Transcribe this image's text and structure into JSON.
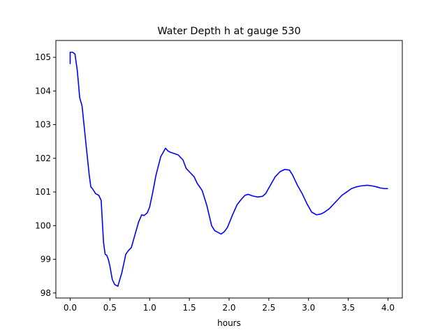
{
  "chart_data": {
    "type": "line",
    "title": "Water Depth h at gauge 530",
    "xlabel": "hours",
    "ylabel": "",
    "xlim": [
      -0.18,
      4.18
    ],
    "ylim": [
      97.85,
      105.5
    ],
    "xticks": [
      0.0,
      0.5,
      1.0,
      1.5,
      2.0,
      2.5,
      3.0,
      3.5,
      4.0
    ],
    "xtick_labels": [
      "0.0",
      "0.5",
      "1.0",
      "1.5",
      "2.0",
      "2.5",
      "3.0",
      "3.5",
      "4.0"
    ],
    "yticks": [
      98,
      99,
      100,
      101,
      102,
      103,
      104,
      105
    ],
    "ytick_labels": [
      "98",
      "99",
      "100",
      "101",
      "102",
      "103",
      "104",
      "105"
    ],
    "grid": false,
    "legend": "none",
    "colors": {
      "line": "#0000ff",
      "axes": "#000000",
      "background": "#ffffff"
    },
    "series": [
      {
        "x": [
          0.0,
          0.0,
          0.03,
          0.06,
          0.09,
          0.12,
          0.15,
          0.2,
          0.24,
          0.26,
          0.28,
          0.32,
          0.36,
          0.39,
          0.42,
          0.44,
          0.46,
          0.48,
          0.5,
          0.53,
          0.56,
          0.6,
          0.65,
          0.7,
          0.73,
          0.77,
          0.8,
          0.86,
          0.9,
          0.93,
          0.97,
          1.0,
          1.04,
          1.08,
          1.14,
          1.2,
          1.23,
          1.26,
          1.3,
          1.36,
          1.42,
          1.46,
          1.5,
          1.56,
          1.6,
          1.66,
          1.72,
          1.78,
          1.82,
          1.9,
          1.94,
          1.98,
          2.04,
          2.1,
          2.16,
          2.2,
          2.24,
          2.3,
          2.36,
          2.42,
          2.46,
          2.52,
          2.58,
          2.64,
          2.7,
          2.76,
          2.8,
          2.86,
          2.92,
          2.98,
          3.04,
          3.1,
          3.16,
          3.2,
          3.26,
          3.3,
          3.36,
          3.42,
          3.48,
          3.54,
          3.6,
          3.66,
          3.74,
          3.8,
          3.86,
          3.9,
          3.96,
          4.0
        ],
        "y": [
          104.8,
          105.15,
          105.15,
          105.1,
          104.6,
          103.8,
          103.55,
          102.4,
          101.5,
          101.15,
          101.1,
          100.95,
          100.9,
          100.75,
          99.5,
          99.15,
          99.12,
          99.0,
          98.8,
          98.4,
          98.25,
          98.2,
          98.6,
          99.15,
          99.25,
          99.35,
          99.6,
          100.1,
          100.32,
          100.3,
          100.38,
          100.55,
          101.0,
          101.5,
          102.05,
          102.3,
          102.22,
          102.18,
          102.15,
          102.1,
          101.95,
          101.7,
          101.6,
          101.45,
          101.25,
          101.05,
          100.6,
          100.0,
          99.85,
          99.75,
          99.82,
          99.95,
          100.3,
          100.62,
          100.8,
          100.9,
          100.93,
          100.88,
          100.85,
          100.87,
          100.95,
          101.2,
          101.45,
          101.6,
          101.67,
          101.65,
          101.5,
          101.2,
          100.95,
          100.65,
          100.4,
          100.32,
          100.35,
          100.4,
          100.5,
          100.6,
          100.75,
          100.9,
          101.0,
          101.1,
          101.15,
          101.18,
          101.2,
          101.18,
          101.15,
          101.12,
          101.1,
          101.1
        ]
      }
    ]
  }
}
